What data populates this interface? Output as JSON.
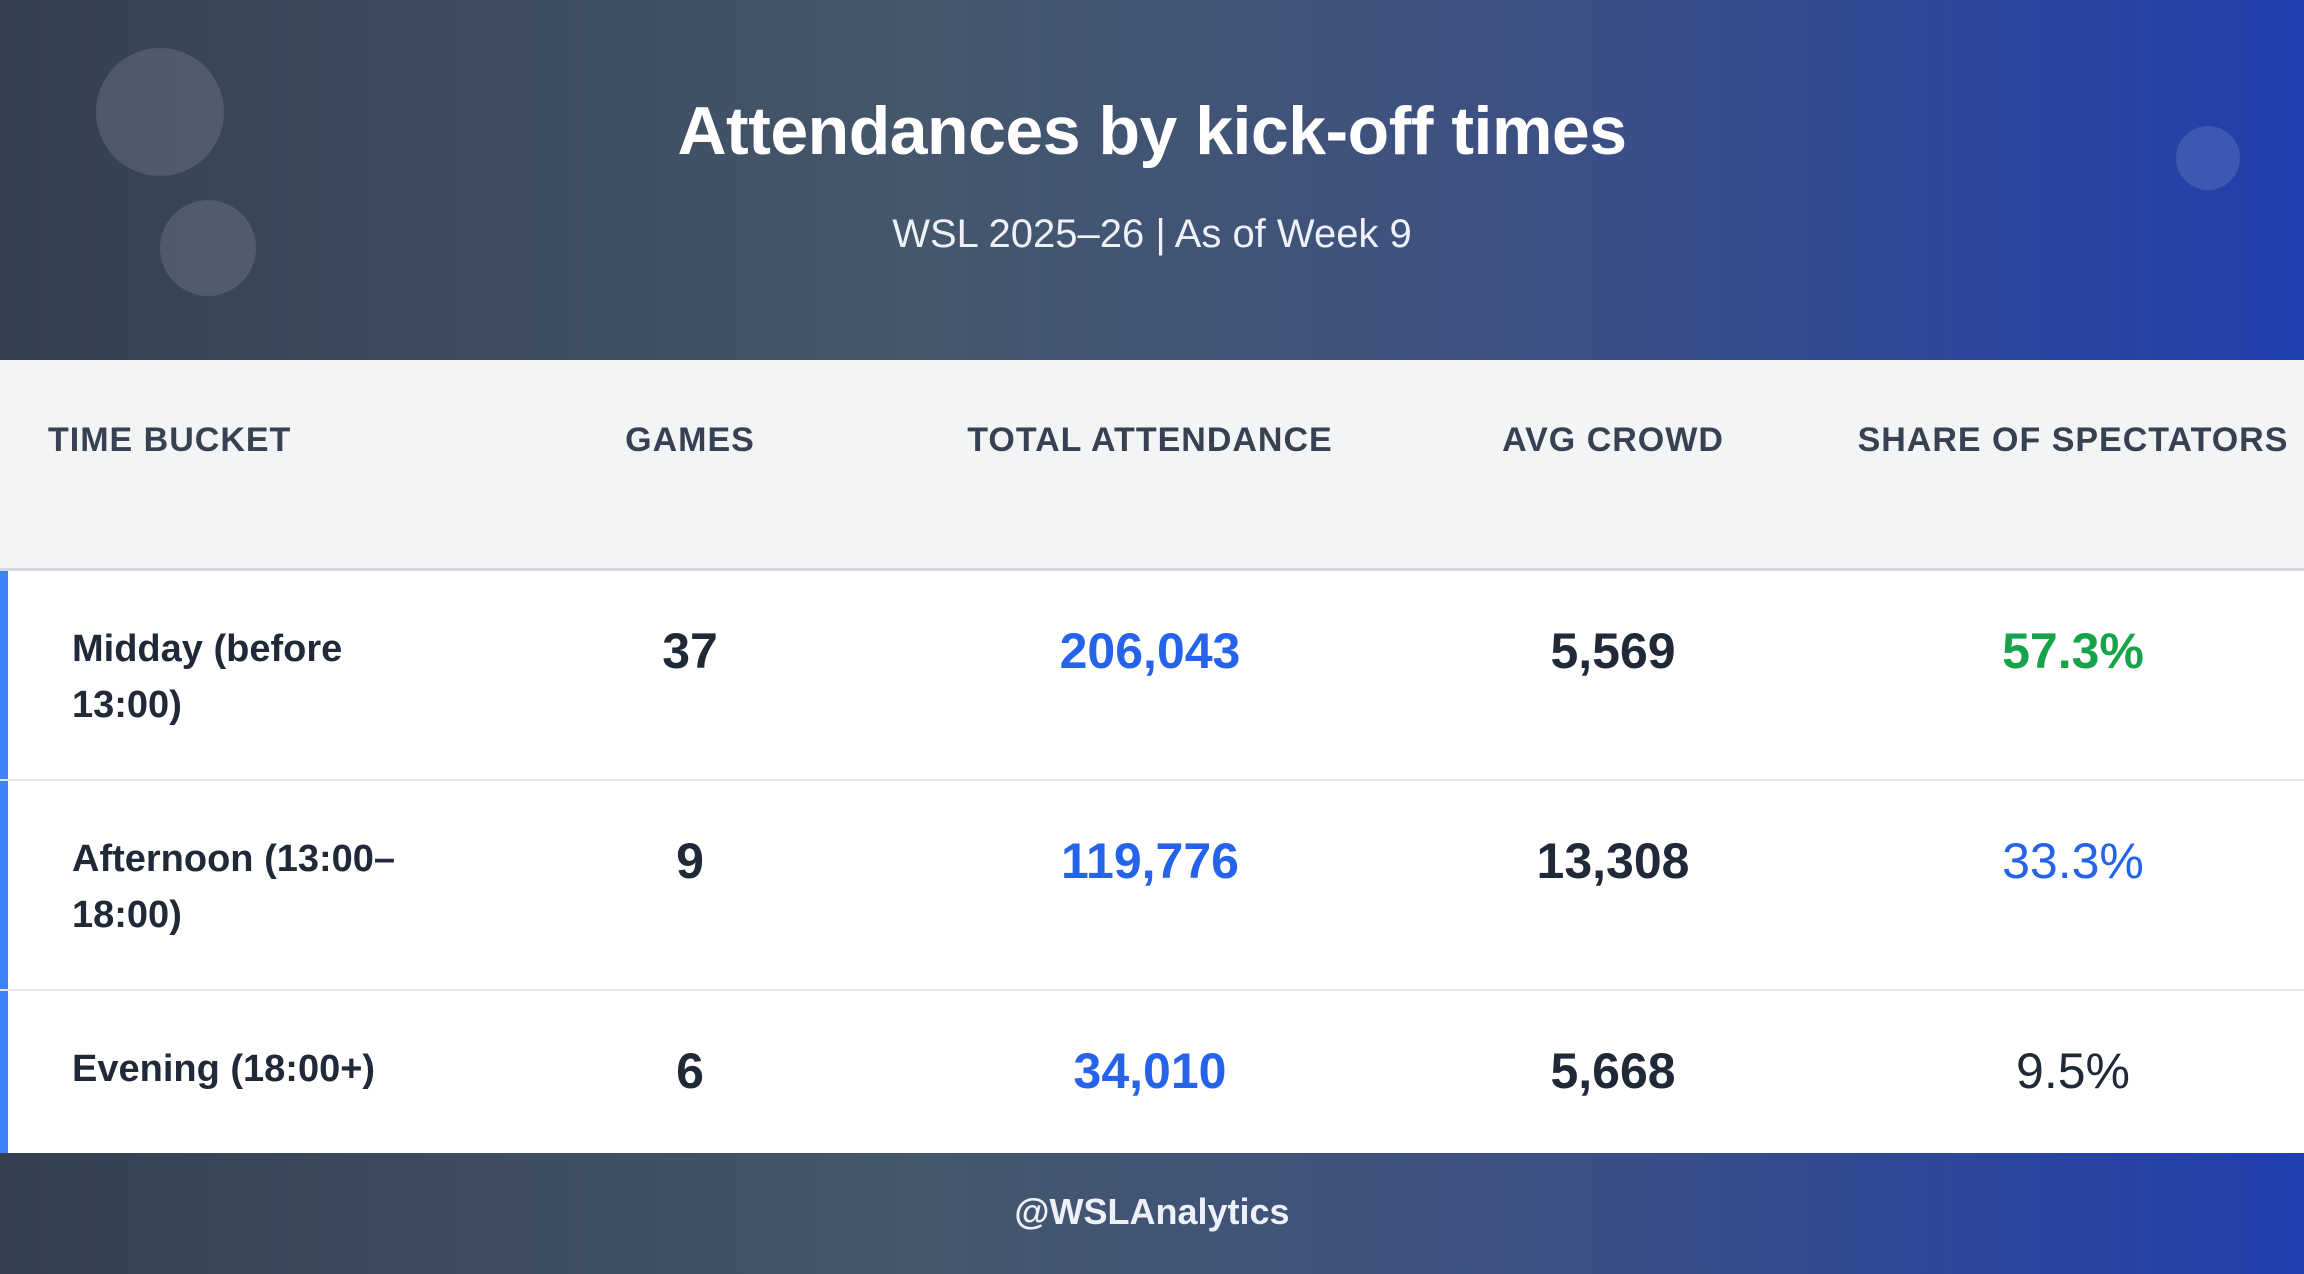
{
  "chart_data": {
    "type": "table",
    "title": "Attendances by kick-off times",
    "subtitle": "WSL 2025–26 | As of Week 9",
    "columns": [
      "TIME BUCKET",
      "GAMES",
      "TOTAL ATTENDANCE",
      "AVG CROWD",
      "SHARE OF SPECTATORS"
    ],
    "rows": [
      {
        "bucket": "Midday (before 13:00)",
        "games": "37",
        "total": "206,043",
        "avg": "5,569",
        "share": "57.3%"
      },
      {
        "bucket": "Afternoon (13:00–18:00)",
        "games": "9",
        "total": "119,776",
        "avg": "13,308",
        "share": "33.3%"
      },
      {
        "bucket": "Evening (18:00+)",
        "games": "6",
        "total": "34,010",
        "avg": "5,668",
        "share": "9.5%"
      }
    ],
    "footer": "@WSLAnalytics"
  },
  "colors": {
    "accent": "#3b82f6",
    "total_blue": "#2563eb",
    "share_high": "#16a34a",
    "share_mid": "#2563eb",
    "text_dark": "#1f2937"
  }
}
